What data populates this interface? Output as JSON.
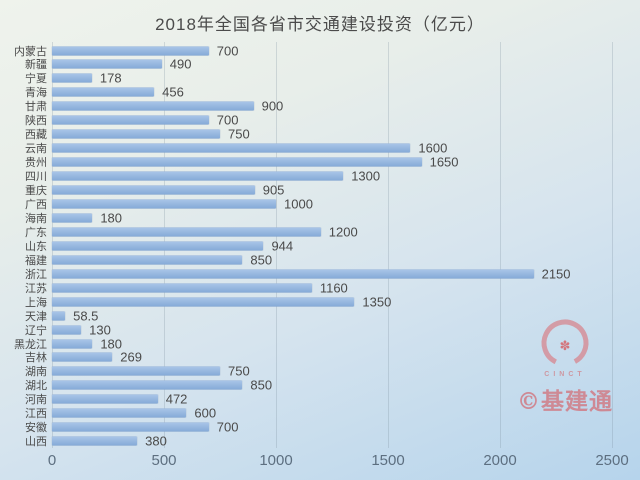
{
  "chart_data": {
    "type": "bar",
    "orientation": "horizontal",
    "title": "2018年全国各省市交通建设投资（亿元）",
    "categories": [
      "内蒙古",
      "新疆",
      "宁夏",
      "青海",
      "甘肃",
      "陕西",
      "西藏",
      "云南",
      "贵州",
      "四川",
      "重庆",
      "广西",
      "海南",
      "广东",
      "山东",
      "福建",
      "浙江",
      "江苏",
      "上海",
      "天津",
      "辽宁",
      "黑龙江",
      "吉林",
      "湖南",
      "湖北",
      "河南",
      "江西",
      "安徽",
      "山西"
    ],
    "values": [
      700,
      490,
      178,
      456,
      900,
      700,
      750,
      1600,
      1650,
      1300,
      905,
      1000,
      180,
      1200,
      944,
      850,
      2150,
      1160,
      1350,
      58.5,
      130,
      180,
      269,
      750,
      850,
      472,
      600,
      700,
      380
    ],
    "xlim": [
      0,
      2500
    ],
    "x_ticks": [
      0,
      500,
      1000,
      1500,
      2000,
      2500
    ],
    "grid": true,
    "legend": "none",
    "bar_color": "#8fb3df",
    "background_top": "#eff3ec",
    "background_bottom": "#b6d4ec"
  },
  "watermark": {
    "logo_text": "CINCT",
    "flower_glyph": "✽",
    "caption": "©基建通"
  }
}
